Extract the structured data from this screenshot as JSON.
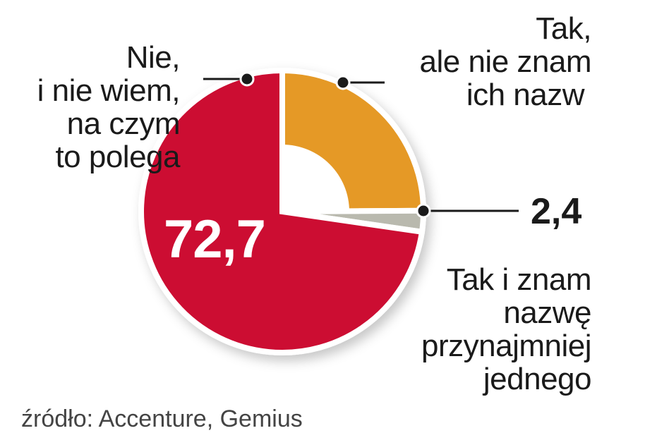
{
  "chart_data": {
    "type": "pie",
    "style": "donut-like pie with white center quarter",
    "slices": [
      {
        "label": [
          "Nie,",
          "i nie wiem,",
          "na czym",
          "to polega"
        ],
        "value": 72.7,
        "value_label": "72,7",
        "color": "#cc0c33"
      },
      {
        "label": [
          "Tak,",
          "ale nie znam",
          "ich nazw"
        ],
        "value": 24.9,
        "color": "#e59925"
      },
      {
        "label": [
          "Tak i znam",
          "nazwę",
          "przynajmniej",
          "jednego"
        ],
        "value": 2.4,
        "value_label": "2,4",
        "color": "#b9b9ae"
      }
    ],
    "source": "źródło: Accenture, Gemius"
  }
}
